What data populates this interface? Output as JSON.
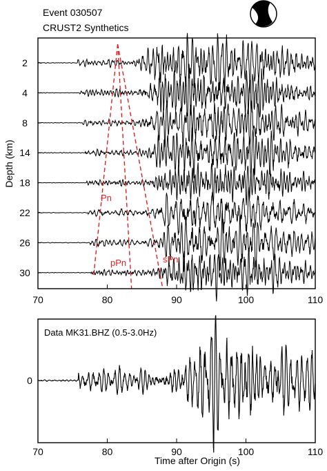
{
  "figure": {
    "title_line1": "Event 030507",
    "title_line2": "CRUST2 Synthetics"
  },
  "colors": {
    "trace": "#000000",
    "phase": "#e02020",
    "axis": "#000000"
  },
  "chart_data": [
    {
      "type": "line",
      "title": "",
      "ylabel": "Depth (km)",
      "xlabel": "",
      "xlim": [
        70,
        110
      ],
      "x_ticks": [
        70,
        80,
        90,
        100,
        110
      ],
      "grid": false,
      "series": [
        {
          "name": "2",
          "onset_s": 75.7,
          "main_s": 84.0
        },
        {
          "name": "4",
          "onset_s": 76.0,
          "main_s": 84.5
        },
        {
          "name": "8",
          "onset_s": 76.4,
          "main_s": 85.0
        },
        {
          "name": "14",
          "onset_s": 76.8,
          "main_s": 85.5
        },
        {
          "name": "18",
          "onset_s": 77.0,
          "main_s": 86.0
        },
        {
          "name": "22",
          "onset_s": 77.2,
          "main_s": 86.3
        },
        {
          "name": "26",
          "onset_s": 77.4,
          "main_s": 86.6
        },
        {
          "name": "30",
          "onset_s": 77.6,
          "main_s": 87.0
        }
      ],
      "annotations": [
        {
          "label": "Pn",
          "apex_s": 81.5,
          "end_s": 78.0
        },
        {
          "label": "pPn",
          "apex_s": 81.5,
          "end_s": 83.5
        },
        {
          "label": "sPn",
          "apex_s": 81.5,
          "end_s": 88.0
        }
      ],
      "focal_mechanism": {
        "shown": true
      }
    },
    {
      "type": "line",
      "title": "Data MK31.BHZ (0.5-3.0Hz)",
      "xlabel": "Time after Origin (s)",
      "ylabel": "",
      "xlim": [
        70,
        110
      ],
      "x_ticks": [
        70,
        80,
        90,
        100,
        110
      ],
      "y_ticks": [
        0
      ],
      "grid": false,
      "series": [
        {
          "onset_s": 75.8,
          "strong_onset_s": 90.5
        }
      ]
    }
  ]
}
